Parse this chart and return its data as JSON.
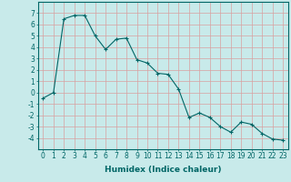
{
  "x": [
    0,
    1,
    2,
    3,
    4,
    5,
    6,
    7,
    8,
    9,
    10,
    11,
    12,
    13,
    14,
    15,
    16,
    17,
    18,
    19,
    20,
    21,
    22,
    23
  ],
  "y": [
    -0.5,
    0.0,
    6.5,
    6.8,
    6.8,
    5.0,
    3.8,
    4.7,
    4.8,
    2.9,
    2.6,
    1.7,
    1.6,
    0.3,
    -2.2,
    -1.8,
    -2.2,
    -3.0,
    -3.5,
    -2.6,
    -2.8,
    -3.6,
    -4.1,
    -4.2
  ],
  "line_color": "#006666",
  "marker": "+",
  "marker_size": 3,
  "marker_linewidth": 0.8,
  "xlabel": "Humidex (Indice chaleur)",
  "ylim": [
    -5,
    8
  ],
  "xlim": [
    -0.5,
    23.5
  ],
  "yticks": [
    -4,
    -3,
    -2,
    -1,
    0,
    1,
    2,
    3,
    4,
    5,
    6,
    7
  ],
  "xticks": [
    0,
    1,
    2,
    3,
    4,
    5,
    6,
    7,
    8,
    9,
    10,
    11,
    12,
    13,
    14,
    15,
    16,
    17,
    18,
    19,
    20,
    21,
    22,
    23
  ],
  "bg_color": "#c8eaea",
  "grid_color": "#e8f8f8",
  "axes_color": "#006666",
  "xlabel_fontsize": 6.5,
  "tick_fontsize": 5.5,
  "line_width": 0.8
}
